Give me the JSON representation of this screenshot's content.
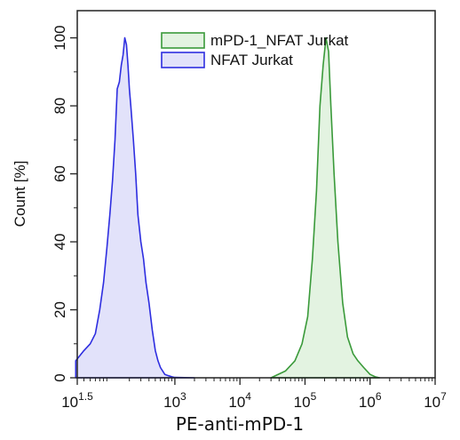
{
  "chart_data": {
    "type": "area",
    "title": "",
    "xlabel": "PE-anti-mPD-1",
    "ylabel": "Count [%]",
    "x_scale": "log10",
    "xlim": [
      31.6,
      10000000
    ],
    "ylim": [
      0,
      108
    ],
    "x_ticks": [
      {
        "value": 31.6,
        "base": "10",
        "exp": "1.5"
      },
      {
        "value": 1000,
        "base": "10",
        "exp": "3"
      },
      {
        "value": 10000,
        "base": "10",
        "exp": "4"
      },
      {
        "value": 100000,
        "base": "10",
        "exp": "5"
      },
      {
        "value": 1000000,
        "base": "10",
        "exp": "6"
      },
      {
        "value": 10000000,
        "base": "10",
        "exp": "7"
      }
    ],
    "y_ticks": [
      0,
      20,
      40,
      60,
      80,
      100
    ],
    "grid": false,
    "legend_position": "top-right",
    "series": [
      {
        "name": "mPD-1_NFAT Jurkat",
        "stroke": "#3a9a3a",
        "fill": "#e3f3e1",
        "x": [
          30000,
          50000,
          70000,
          90000,
          110000,
          130000,
          150000,
          170000,
          190000,
          210000,
          230000,
          250000,
          280000,
          320000,
          380000,
          450000,
          550000,
          650000,
          800000,
          1000000,
          1200000,
          1400000
        ],
        "y": [
          0,
          2,
          5,
          10,
          18,
          35,
          55,
          80,
          92,
          100,
          96,
          80,
          60,
          40,
          22,
          12,
          7,
          5,
          3,
          1,
          0.3,
          0
        ]
      },
      {
        "name": "NFAT Jurkat",
        "stroke": "#2e2ee0",
        "fill": "#e2e2fa",
        "x": [
          30,
          40,
          50,
          60,
          70,
          80,
          90,
          100,
          110,
          120,
          130,
          140,
          150,
          160,
          170,
          180,
          190,
          200,
          210,
          230,
          250,
          270,
          300,
          330,
          360,
          400,
          450,
          500,
          550,
          600,
          650,
          700,
          800,
          900,
          1000,
          2000
        ],
        "y": [
          5,
          8,
          10,
          13,
          20,
          28,
          38,
          48,
          58,
          70,
          85,
          87,
          92,
          95,
          100,
          98,
          92,
          85,
          80,
          70,
          60,
          48,
          40,
          35,
          28,
          22,
          14,
          8,
          5,
          3,
          2,
          1,
          0.6,
          0.3,
          0.1,
          0
        ]
      }
    ]
  }
}
